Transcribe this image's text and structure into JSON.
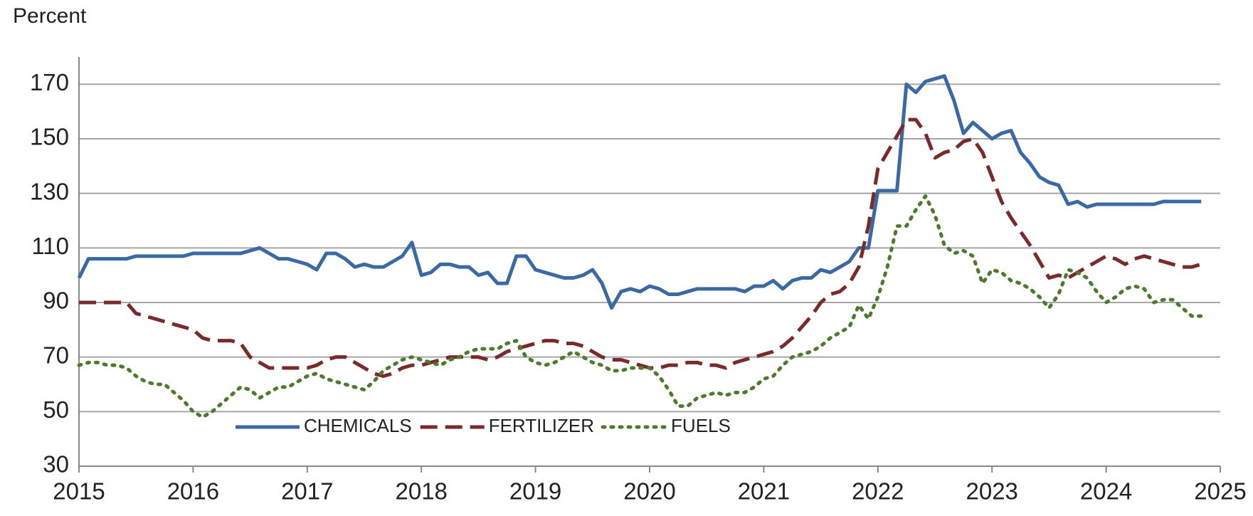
{
  "chart_data": {
    "type": "line",
    "y_label": "Percent",
    "xlim": [
      2015,
      2025
    ],
    "xticks": [
      2015,
      2016,
      2017,
      2018,
      2019,
      2020,
      2021,
      2022,
      2023,
      2024,
      2025
    ],
    "ylim": [
      30,
      180
    ],
    "yticks": [
      30,
      50,
      70,
      90,
      110,
      130,
      150,
      170
    ],
    "grid": true,
    "legend": "lower left",
    "x": [
      2015,
      2015.083,
      2015.167,
      2015.25,
      2015.333,
      2015.417,
      2015.5,
      2015.583,
      2015.667,
      2015.75,
      2015.833,
      2015.917,
      2016,
      2016.083,
      2016.167,
      2016.25,
      2016.333,
      2016.417,
      2016.5,
      2016.583,
      2016.667,
      2016.75,
      2016.833,
      2016.917,
      2017,
      2017.083,
      2017.167,
      2017.25,
      2017.333,
      2017.417,
      2017.5,
      2017.583,
      2017.667,
      2017.75,
      2017.833,
      2017.917,
      2018,
      2018.083,
      2018.167,
      2018.25,
      2018.333,
      2018.417,
      2018.5,
      2018.583,
      2018.667,
      2018.75,
      2018.833,
      2018.917,
      2019,
      2019.083,
      2019.167,
      2019.25,
      2019.333,
      2019.417,
      2019.5,
      2019.583,
      2019.667,
      2019.75,
      2019.833,
      2019.917,
      2020,
      2020.083,
      2020.167,
      2020.25,
      2020.333,
      2020.417,
      2020.5,
      2020.583,
      2020.667,
      2020.75,
      2020.833,
      2020.917,
      2021,
      2021.083,
      2021.167,
      2021.25,
      2021.333,
      2021.417,
      2021.5,
      2021.583,
      2021.667,
      2021.75,
      2021.833,
      2021.917,
      2022,
      2022.083,
      2022.167,
      2022.25,
      2022.333,
      2022.417,
      2022.5,
      2022.583,
      2022.667,
      2022.75,
      2022.833,
      2022.917,
      2023,
      2023.083,
      2023.167,
      2023.25,
      2023.333,
      2023.417,
      2023.5,
      2023.583,
      2023.667,
      2023.75,
      2023.833,
      2023.917,
      2024,
      2024.083,
      2024.167,
      2024.25,
      2024.333,
      2024.417,
      2024.5,
      2024.583,
      2024.667,
      2024.75,
      2024.833
    ],
    "series": [
      {
        "name": "CHEMICALS",
        "color": "#3b69a3",
        "dash": "solid",
        "values": [
          99,
          106,
          106,
          106,
          106,
          106,
          107,
          107,
          107,
          107,
          107,
          107,
          108,
          108,
          108,
          108,
          108,
          108,
          109,
          110,
          108,
          106,
          106,
          105,
          104,
          102,
          108,
          108,
          106,
          103,
          104,
          103,
          103,
          105,
          107,
          112,
          100,
          101,
          104,
          104,
          103,
          103,
          100,
          101,
          97,
          97,
          107,
          107,
          102,
          101,
          100,
          99,
          99,
          100,
          102,
          97,
          88,
          94,
          95,
          94,
          96,
          95,
          93,
          93,
          94,
          95,
          95,
          95,
          95,
          95,
          94,
          96,
          96,
          98,
          95,
          98,
          99,
          99,
          102,
          101,
          103,
          105,
          110,
          110,
          131,
          131,
          131,
          170,
          167,
          171,
          172,
          173,
          164,
          152,
          156,
          153,
          150,
          152,
          153,
          145,
          141,
          136,
          134,
          133,
          126,
          127,
          125,
          126,
          126,
          126,
          126,
          126,
          126,
          126,
          127,
          127,
          127,
          127,
          127
        ]
      },
      {
        "name": "FERTILIZER",
        "color": "#7a2a2a",
        "dash": "dashed",
        "values": [
          90,
          90,
          90,
          90,
          90,
          90,
          86,
          85,
          84,
          83,
          82,
          81,
          80,
          77,
          76,
          76,
          76,
          75,
          70,
          68,
          66,
          66,
          66,
          66,
          66,
          67,
          69,
          70,
          70,
          68,
          66,
          64,
          63,
          64,
          66,
          67,
          67,
          68,
          69,
          70,
          70,
          70,
          70,
          69,
          70,
          72,
          73,
          74,
          75,
          76,
          76,
          75,
          75,
          74,
          72,
          70,
          69,
          69,
          68,
          67,
          66,
          66,
          67,
          67,
          68,
          68,
          67,
          67,
          66,
          68,
          69,
          70,
          71,
          72,
          74,
          77,
          81,
          85,
          90,
          93,
          94,
          97,
          103,
          118,
          139,
          145,
          151,
          157,
          157,
          152,
          143,
          145,
          146,
          149,
          150,
          145,
          136,
          127,
          121,
          116,
          111,
          105,
          99,
          100,
          99,
          101,
          103,
          105,
          107,
          106,
          104,
          106,
          107,
          106,
          105,
          104,
          103,
          103,
          104
        ]
      },
      {
        "name": "FUELS",
        "color": "#4d7a2c",
        "dash": "dotted",
        "values": [
          67,
          68,
          68,
          67,
          67,
          66,
          63,
          61,
          60,
          60,
          57,
          54,
          50,
          48,
          50,
          53,
          56,
          59,
          58,
          55,
          57,
          59,
          59,
          61,
          63,
          64,
          62,
          61,
          60,
          59,
          58,
          61,
          65,
          67,
          69,
          70,
          69,
          68,
          67,
          69,
          70,
          72,
          73,
          73,
          73,
          75,
          76,
          70,
          68,
          67,
          68,
          70,
          72,
          70,
          68,
          67,
          65,
          65,
          66,
          66,
          66,
          63,
          58,
          52,
          52,
          55,
          56,
          57,
          56,
          57,
          57,
          59,
          62,
          63,
          67,
          70,
          71,
          72,
          74,
          77,
          79,
          81,
          89,
          84,
          92,
          103,
          118,
          118,
          124,
          129,
          122,
          111,
          108,
          109,
          107,
          97,
          102,
          101,
          98,
          97,
          95,
          92,
          88,
          93,
          102,
          101,
          99,
          94,
          90,
          92,
          95,
          96,
          95,
          90,
          91,
          91,
          88,
          85,
          85
        ]
      }
    ]
  }
}
